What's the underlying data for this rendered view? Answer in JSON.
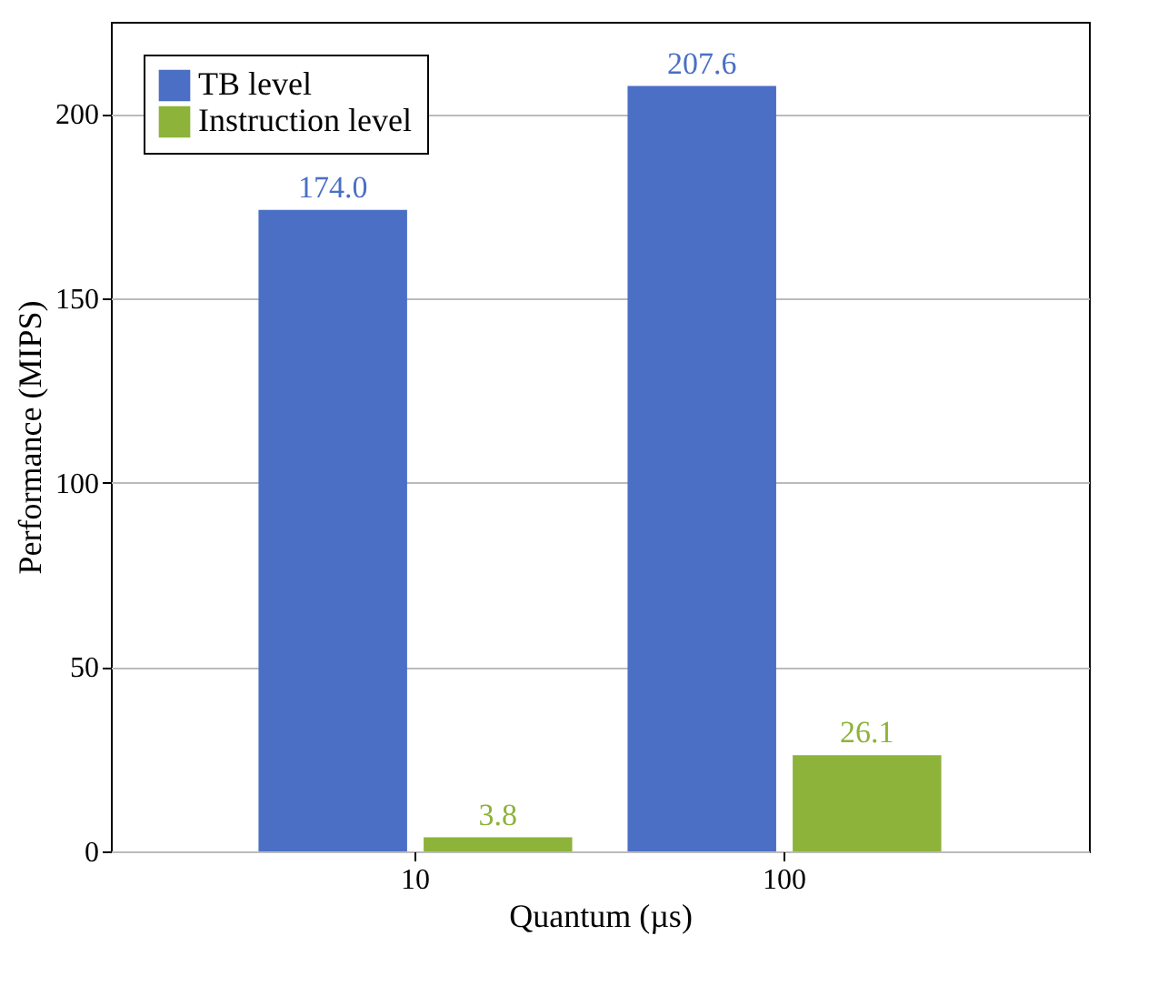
{
  "chart_data": {
    "type": "bar",
    "xlabel": "Quantum (µs)",
    "ylabel": "Performance (MIPS)",
    "categories": [
      "10",
      "100"
    ],
    "series": [
      {
        "name": "TB level",
        "color": "#4a6fc4",
        "values": [
          174.0,
          207.6
        ],
        "value_labels": [
          "174.0",
          "207.6"
        ]
      },
      {
        "name": "Instruction level",
        "color": "#8db33a",
        "values": [
          3.8,
          26.1
        ],
        "value_labels": [
          "3.8",
          "26.1"
        ]
      }
    ],
    "ylim": [
      0,
      225
    ],
    "yticks": [
      0,
      50,
      100,
      150,
      200
    ],
    "grid": "y",
    "legend": "top left"
  }
}
